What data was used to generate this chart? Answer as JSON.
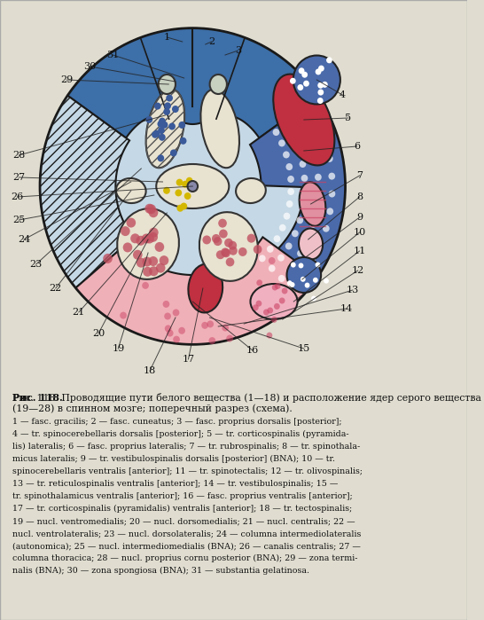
{
  "title": "Рис. 118. Проводящие пути белого вещества (1—18) и расположение ядер серого вещества (19—28) в спинном мозге; поперечный разрез (схема).",
  "caption_lines": [
    "1 — fasc. gracilis; 2 — fasc. cuneatus; 3 — fasc. proprius dorsalis [posterior];",
    "4 — tr. spinocerebellaris dorsalis [posterior]; 5 — tr. corticospinalis (pyramida-",
    "lis) lateralis; 6 — fasc. proprius lateralis; 7 — tr. rubrospinalis; 8 — tr. spinothala-",
    "micus lateralis; 9 — tr. vestibulospinalis dorsalis [posterior] (BNA); 10 — tr.",
    "spinocerebellaris ventralis [anterior]; 11 — tr. spinotectalis; 12 — tr. olivospinalis;",
    "13 — tr. reticulospinalis ventralis [anterior]; 14 — tr. vestibulospinalis; 15 —",
    "tr. spinothalamicus ventralis [anterior]; 16 — fasc. proprius ventralis [anterior];",
    "17 — tr. corticospinalis (pyramidalis) ventralis [anterior]; 18 — tr. tectospinalis;",
    "19 — nucl. ventromedialis; 20 — nucl. dorsomedialis; 21 — nucl. centralis; 22 —",
    "nucl. ventrolateralis; 23 — nucl. dorsolateralis; 24 — columna intermediolateralis",
    "(autonomica); 25 — nucl. intermediomedialis (BNA); 26 — canalis centralis; 27 —",
    "columna thoracica; 28 — nucl. proprius cornu posterior (BNA); 29 — zona termi-",
    "nalis (BNA); 30 — zona spongiosa (BNA); 31 — substantia gelatinosa."
  ],
  "bg_color": "#d8e8f0",
  "page_bg": "#e8e8d8"
}
